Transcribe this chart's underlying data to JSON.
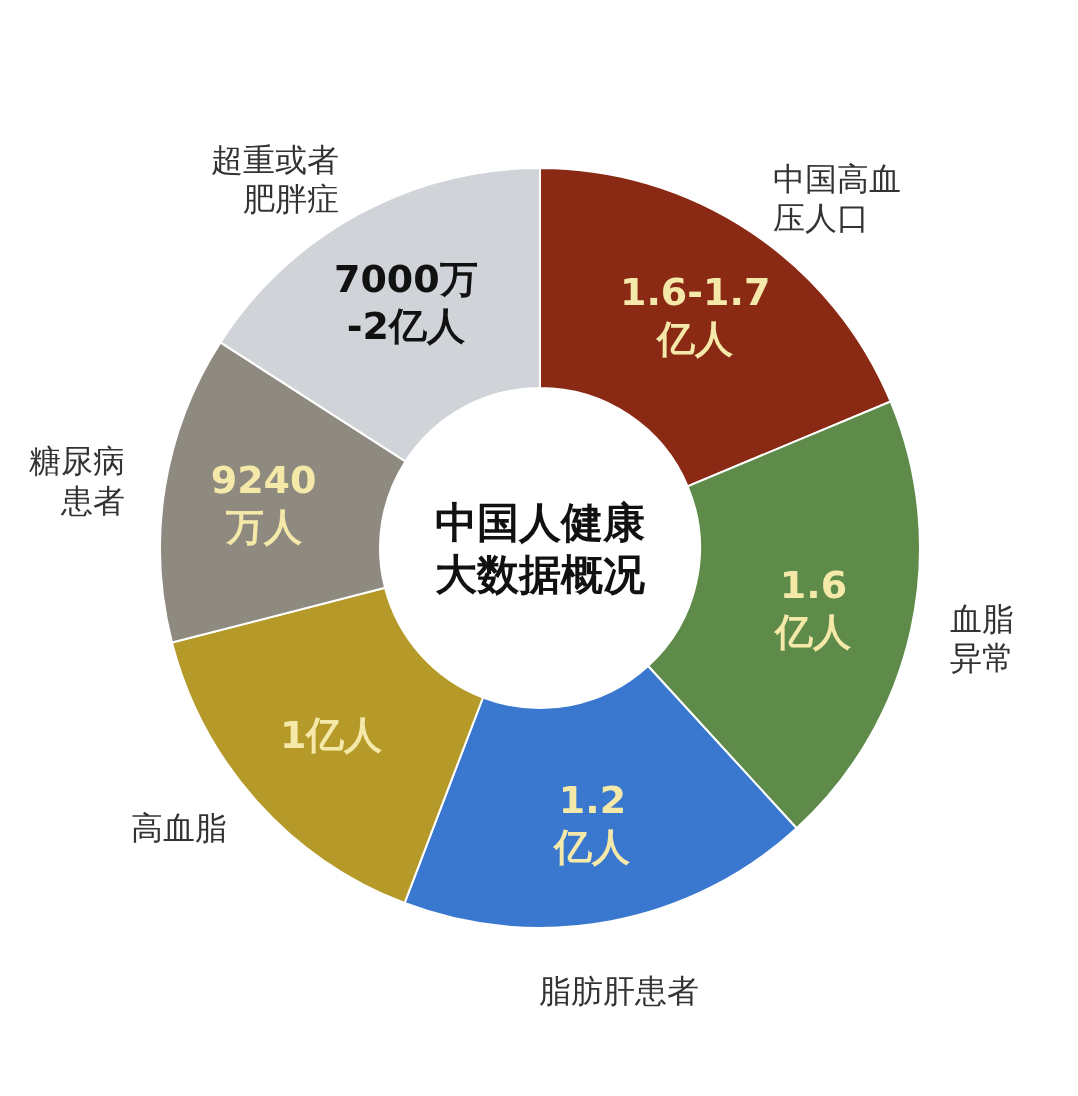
{
  "chart_data": {
    "type": "donut",
    "title": "中国人健康大数据概况",
    "categories": [
      "中国高血压人口",
      "血脂异常",
      "脂肪肝患者",
      "高血脂",
      "糖尿病患者",
      "超重或者肥胖症"
    ],
    "values": [
      18.7,
      19.5,
      17.6,
      15.2,
      13.1,
      15.9
    ],
    "colors": [
      "#8b2a14",
      "#5e8a4a",
      "#3a78d0",
      "#b59a2a",
      "#8f8a80",
      "#d0d4d8"
    ],
    "annotations": [
      "1.6-1.7\n亿人",
      "1.6\n亿人",
      "1.2\n亿人",
      "1亿人",
      "9240\n万人",
      "7000万\n-2亿人"
    ]
  }
}
